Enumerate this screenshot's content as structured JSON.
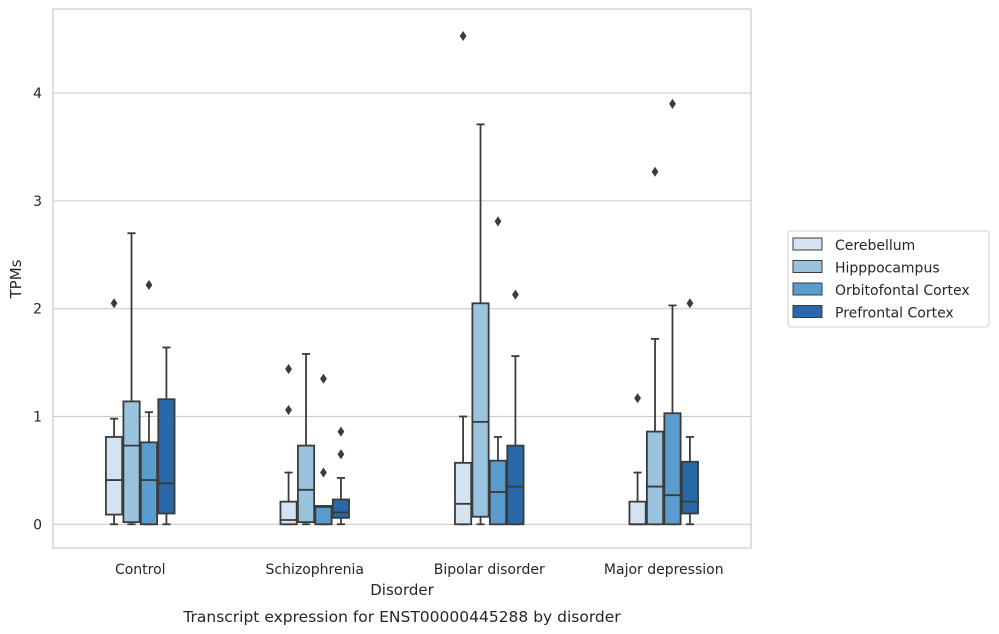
{
  "chart_data": {
    "type": "box",
    "title": "",
    "caption": "Transcript expression for ENST00000445288 by disorder",
    "xlabel": "Disorder",
    "ylabel": "TPMs",
    "ylim": [
      -0.22,
      4.78
    ],
    "yticks": [
      "0",
      "1",
      "2",
      "3",
      "4"
    ],
    "grid": "horizontal",
    "legend_position": "right",
    "categories": [
      "Control",
      "Schizophrenia",
      "Bipolar disorder",
      "Major depression"
    ],
    "series": [
      {
        "name": "Cerebellum",
        "color": "#d4e3f1",
        "boxes": [
          {
            "whisker_low": 0.0,
            "q1": 0.09,
            "median": 0.41,
            "q3": 0.81,
            "whisker_high": 0.98,
            "outliers": [
              2.05
            ]
          },
          {
            "whisker_low": 0.0,
            "q1": 0.0,
            "median": 0.04,
            "q3": 0.21,
            "whisker_high": 0.48,
            "outliers": [
              1.06,
              1.44
            ]
          },
          {
            "whisker_low": 0.0,
            "q1": 0.0,
            "median": 0.19,
            "q3": 0.57,
            "whisker_high": 1.0,
            "outliers": [
              4.53
            ]
          },
          {
            "whisker_low": 0.0,
            "q1": 0.0,
            "median": 0.0,
            "q3": 0.21,
            "whisker_high": 0.48,
            "outliers": [
              1.17
            ]
          }
        ]
      },
      {
        "name": "Hipppocampus",
        "color": "#9ac3de",
        "boxes": [
          {
            "whisker_low": 0.0,
            "q1": 0.02,
            "median": 0.73,
            "q3": 1.14,
            "whisker_high": 2.7,
            "outliers": []
          },
          {
            "whisker_low": 0.0,
            "q1": 0.02,
            "median": 0.32,
            "q3": 0.73,
            "whisker_high": 1.58,
            "outliers": []
          },
          {
            "whisker_low": 0.0,
            "q1": 0.07,
            "median": 0.95,
            "q3": 2.05,
            "whisker_high": 3.71,
            "outliers": []
          },
          {
            "whisker_low": 0.0,
            "q1": 0.0,
            "median": 0.35,
            "q3": 0.86,
            "whisker_high": 1.72,
            "outliers": [
              3.27
            ]
          }
        ]
      },
      {
        "name": "Orbitofontal Cortex",
        "color": "#5a9ccd",
        "boxes": [
          {
            "whisker_low": 0.0,
            "q1": 0.0,
            "median": 0.41,
            "q3": 0.76,
            "whisker_high": 1.04,
            "outliers": [
              2.22
            ]
          },
          {
            "whisker_low": 0.0,
            "q1": 0.0,
            "median": 0.16,
            "q3": 0.17,
            "whisker_high": 0.17,
            "outliers": [
              0.48,
              1.35
            ]
          },
          {
            "whisker_low": 0.0,
            "q1": 0.0,
            "median": 0.3,
            "q3": 0.59,
            "whisker_high": 0.81,
            "outliers": [
              2.81
            ]
          },
          {
            "whisker_low": 0.0,
            "q1": 0.0,
            "median": 0.27,
            "q3": 1.03,
            "whisker_high": 2.03,
            "outliers": [
              3.9
            ]
          }
        ]
      },
      {
        "name": "Prefrontal Cortex",
        "color": "#2a69a9",
        "boxes": [
          {
            "whisker_low": 0.0,
            "q1": 0.1,
            "median": 0.38,
            "q3": 1.16,
            "whisker_high": 1.64,
            "outliers": []
          },
          {
            "whisker_low": 0.0,
            "q1": 0.06,
            "median": 0.11,
            "q3": 0.23,
            "whisker_high": 0.43,
            "outliers": [
              0.65,
              0.86
            ]
          },
          {
            "whisker_low": 0.0,
            "q1": 0.0,
            "median": 0.35,
            "q3": 0.73,
            "whisker_high": 1.56,
            "outliers": [
              2.13
            ]
          },
          {
            "whisker_low": 0.0,
            "q1": 0.1,
            "median": 0.21,
            "q3": 0.58,
            "whisker_high": 0.81,
            "outliers": [
              2.05
            ]
          }
        ]
      }
    ]
  }
}
